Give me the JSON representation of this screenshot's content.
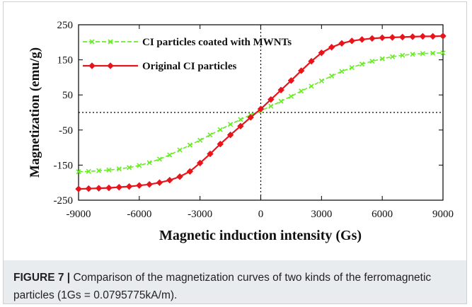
{
  "figure": {
    "caption_label": "FIGURE 7 |",
    "caption_text": "Comparison of the magnetization curves of two kinds of the ferromagnetic particles (1Gs = 0.0795775kA/m)."
  },
  "chart_data": {
    "type": "line",
    "xlabel": "Magnetic induction intensity (Gs)",
    "ylabel": "Magnetization (emu/g)",
    "xlim": [
      -9000,
      9000
    ],
    "ylim": [
      -250,
      250
    ],
    "xticks": [
      "-9000",
      "-6000",
      "-3000",
      "0",
      "3000",
      "6000",
      "9000"
    ],
    "yticks": [
      "250",
      "150",
      "50",
      "-50",
      "-150",
      "-250"
    ],
    "legend_position": "top-left",
    "grid": false,
    "reference_lines": [
      "x = 0 (dotted)",
      "y = 0 (dotted)"
    ],
    "colors": {
      "coated": "#66ee22",
      "original": "#e8141c"
    },
    "series": [
      {
        "name": "CI particles coated with MWNTs",
        "color": "#66ee22",
        "marker": "x",
        "x": [
          -9000,
          -8500,
          -8000,
          -7500,
          -7000,
          -6500,
          -6000,
          -5500,
          -5000,
          -4500,
          -4000,
          -3500,
          -3000,
          -2500,
          -2000,
          -1500,
          -1000,
          -500,
          0,
          500,
          1000,
          1500,
          2000,
          2500,
          3000,
          3500,
          4000,
          4500,
          5000,
          5500,
          6000,
          6500,
          7000,
          7500,
          8000,
          8500,
          9000
        ],
        "y": [
          -169,
          -168,
          -166,
          -164,
          -161,
          -157,
          -151,
          -143,
          -133,
          -121,
          -107,
          -93,
          -79,
          -64,
          -49,
          -34,
          -20,
          -7,
          5,
          18,
          32,
          46,
          61,
          75,
          90,
          104,
          117,
          128,
          138,
          146,
          153,
          159,
          163,
          166,
          168,
          169,
          170
        ]
      },
      {
        "name": "Original CI particles",
        "color": "#e8141c",
        "marker": "diamond",
        "x": [
          -9000,
          -8500,
          -8000,
          -7500,
          -7000,
          -6500,
          -6000,
          -5500,
          -5000,
          -4500,
          -4000,
          -3500,
          -3000,
          -2500,
          -2000,
          -1500,
          -1000,
          -500,
          0,
          500,
          1000,
          1500,
          2000,
          2500,
          3000,
          3500,
          4000,
          4500,
          5000,
          5500,
          6000,
          6500,
          7000,
          7500,
          8000,
          8500,
          9000
        ],
        "y": [
          -218,
          -217,
          -216,
          -215,
          -213,
          -211,
          -208,
          -205,
          -200,
          -193,
          -183,
          -168,
          -144,
          -118,
          -90,
          -64,
          -39,
          -14,
          10,
          37,
          64,
          91,
          119,
          146,
          170,
          186,
          197,
          204,
          208,
          211,
          213,
          214,
          215,
          216,
          217,
          217,
          218
        ]
      }
    ]
  }
}
